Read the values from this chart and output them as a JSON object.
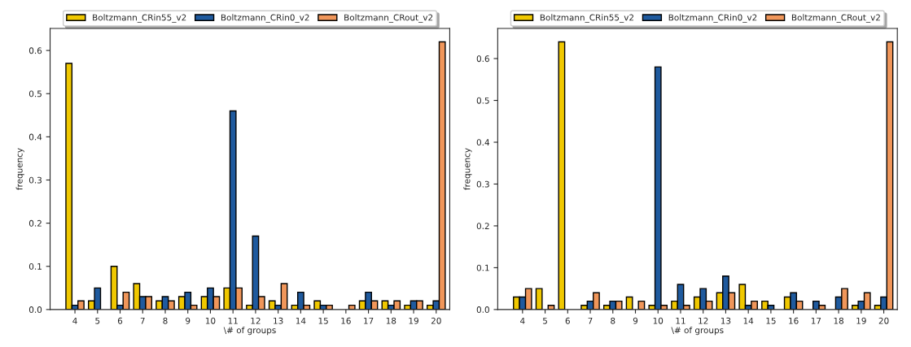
{
  "chart_data": [
    {
      "type": "bar",
      "xlabel": "\\# of groups",
      "ylabel": "frequency",
      "legend": "top",
      "categories": [
        "4",
        "5",
        "6",
        "7",
        "8",
        "9",
        "10",
        "11",
        "12",
        "13",
        "14",
        "15",
        "16",
        "17",
        "18",
        "19",
        "20"
      ],
      "ylim": [
        0,
        0.651
      ],
      "yticks": [
        {
          "value": 0,
          "label": "0.0"
        },
        0.1,
        0.2,
        0.3,
        0.4,
        0.5,
        0.6
      ],
      "series": [
        {
          "name": "Boltzmann_CRin55_v2",
          "color": "#f0c800",
          "values": [
            0.57,
            0.02,
            0.1,
            0.06,
            0.02,
            0.03,
            0.03,
            0.05,
            0.01,
            0.02,
            0.01,
            0.02,
            0,
            0.02,
            0.02,
            0.01,
            0.01
          ]
        },
        {
          "name": "Boltzmann_CRin0_v2",
          "color": "#1f5a9e",
          "values": [
            0.01,
            0.05,
            0.01,
            0.03,
            0.03,
            0.04,
            0.05,
            0.46,
            0.17,
            0.01,
            0.04,
            0.01,
            0,
            0.04,
            0.01,
            0.02,
            0.02
          ]
        },
        {
          "name": "Boltzmann_CRout_v2",
          "color": "#f0965a",
          "values": [
            0.02,
            0,
            0.04,
            0.03,
            0.02,
            0.01,
            0.03,
            0.05,
            0.03,
            0.06,
            0.01,
            0.01,
            0.01,
            0.02,
            0.02,
            0.02,
            0.62
          ]
        }
      ]
    },
    {
      "type": "bar",
      "xlabel": "\\# of groups",
      "ylabel": "frequency",
      "legend": "top",
      "categories": [
        "4",
        "5",
        "6",
        "7",
        "8",
        "9",
        "10",
        "11",
        "12",
        "13",
        "14",
        "15",
        "16",
        "17",
        "18",
        "19",
        "20"
      ],
      "ylim": [
        0,
        0.672
      ],
      "yticks": [
        {
          "value": 0,
          "label": "0.0"
        },
        0.1,
        0.2,
        0.3,
        0.4,
        0.5,
        0.6
      ],
      "series": [
        {
          "name": "Boltzmann_CRin55_v2",
          "color": "#f0c800",
          "values": [
            0.03,
            0.05,
            0.64,
            0.01,
            0.01,
            0.03,
            0.01,
            0.02,
            0.03,
            0.04,
            0.06,
            0.02,
            0.03,
            0,
            0,
            0.01,
            0.01
          ]
        },
        {
          "name": "Boltzmann_CRin0_v2",
          "color": "#1f5a9e",
          "values": [
            0.03,
            0,
            0,
            0.02,
            0.02,
            0,
            0.58,
            0.06,
            0.05,
            0.08,
            0.01,
            0.01,
            0.04,
            0.02,
            0.03,
            0.02,
            0.03
          ]
        },
        {
          "name": "Boltzmann_CRout_v2",
          "color": "#f0965a",
          "values": [
            0.05,
            0.01,
            0,
            0.04,
            0.02,
            0.02,
            0.01,
            0.01,
            0.02,
            0.04,
            0.02,
            0,
            0.02,
            0.01,
            0.05,
            0.04,
            0.64
          ]
        }
      ]
    }
  ]
}
